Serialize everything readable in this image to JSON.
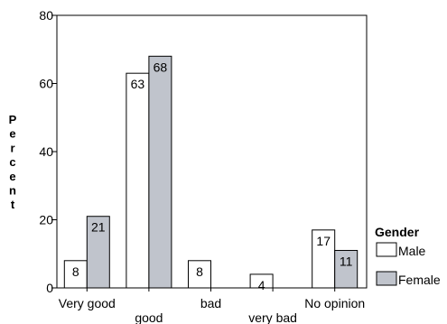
{
  "chart_data": {
    "type": "bar",
    "categories": [
      "Very good",
      "good",
      "bad",
      "very bad",
      "No opinion"
    ],
    "series": [
      {
        "name": "Male",
        "values": [
          8,
          63,
          8,
          4,
          17
        ],
        "color": "#ffffff"
      },
      {
        "name": "Female",
        "values": [
          21,
          68,
          0,
          0,
          11
        ],
        "color": "#c0c4cc"
      }
    ],
    "data_labels": [
      [
        "8",
        "63",
        "8",
        "4",
        "17"
      ],
      [
        "21",
        "68",
        "",
        "",
        "11"
      ]
    ],
    "ylabel": "Percent",
    "ylim": [
      0,
      80
    ],
    "yticks": [
      0,
      20,
      40,
      60,
      80
    ],
    "legend": {
      "title": "Gender",
      "placement": "right"
    },
    "grid": false
  }
}
